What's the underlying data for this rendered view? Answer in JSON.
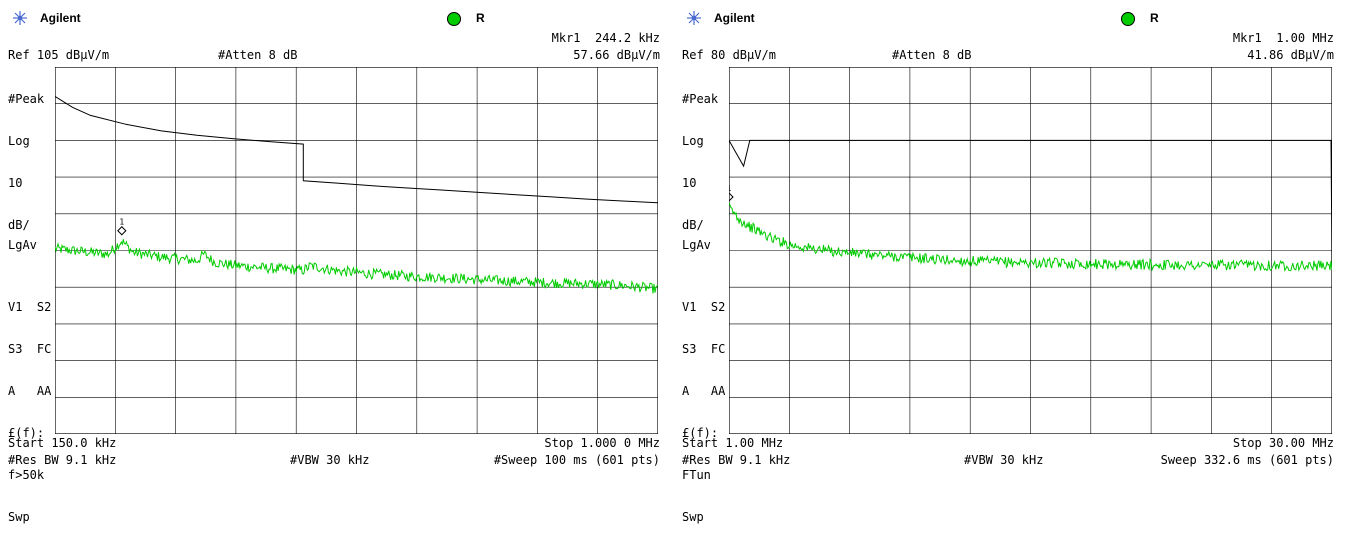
{
  "panels": [
    {
      "id": "left",
      "brand": "Agilent",
      "r_indicator": "R",
      "mkr_label": "Mkr1  244.2 kHz",
      "mkr_value": "57.66 dBμV/m",
      "ref": "Ref 105 dBμV/m",
      "atten": "#Atten 8 dB",
      "side_labels": [
        "#Peak",
        "Log",
        "10",
        "dB/"
      ],
      "lgav": "LgAv",
      "side_labels2": [
        "V1  S2",
        "S3  FC",
        "A   AA",
        "£(f):",
        "f>50k",
        "Swp"
      ],
      "start": "Start 150.0 kHz",
      "stop": "Stop 1.000 0 MHz",
      "res_bw": "#Res BW 9.1 kHz",
      "vbw": "#VBW 30 kHz",
      "sweep": "#Sweep 100 ms (601 pts)",
      "marker_num": "1",
      "colors": {
        "trace": "#00cc00",
        "limit": "#000000",
        "indicator": "#00cc00"
      }
    },
    {
      "id": "right",
      "brand": "Agilent",
      "r_indicator": "R",
      "mkr_label": "Mkr1  1.00 MHz",
      "mkr_value": "41.86 dBμV/m",
      "ref": "Ref 80 dBμV/m",
      "atten": "#Atten 8 dB",
      "side_labels": [
        "#Peak",
        "Log",
        "10",
        "dB/"
      ],
      "lgav": "LgAv",
      "side_labels2": [
        "V1  S2",
        "S3  FC",
        "A   AA",
        "£(f):",
        "FTun",
        "Swp"
      ],
      "start": "Start 1.00 MHz",
      "stop": "Stop 30.00 MHz",
      "res_bw": "#Res BW 9.1 kHz",
      "vbw": "#VBW 30 kHz",
      "sweep": "Sweep 332.6 ms (601 pts)",
      "marker_num": "1",
      "colors": {
        "trace": "#00cc00",
        "limit": "#000000",
        "indicator": "#00cc00"
      }
    }
  ],
  "chart_data": [
    {
      "type": "line",
      "title": "",
      "xlabel": "",
      "ylabel": "dBμV/m",
      "x_unit": "kHz",
      "xlim": [
        150.0,
        1000.0
      ],
      "ylim": [
        5,
        105
      ],
      "grid": true,
      "series": [
        {
          "role": "limit",
          "x": [
            150,
            175,
            200,
            250,
            300,
            350,
            400,
            450,
            500,
            500.01,
            550,
            600,
            650,
            700,
            750,
            800,
            850,
            900,
            950,
            1000
          ],
          "values": [
            97,
            94,
            91.8,
            89.4,
            87.6,
            86.4,
            85.5,
            84.7,
            84.0,
            74.0,
            73.3,
            72.6,
            72.0,
            71.4,
            70.8,
            70.2,
            69.6,
            69.0,
            68.5,
            68.0
          ]
        },
        {
          "role": "trace",
          "x": [
            150,
            175,
            200,
            225,
            244.2,
            260,
            300,
            350,
            360,
            375,
            400,
            450,
            500,
            510,
            550,
            600,
            650,
            700,
            750,
            800,
            850,
            900,
            950,
            1000
          ],
          "values": [
            55.5,
            55.0,
            54.5,
            54.0,
            57.66,
            54.5,
            53.2,
            52.2,
            54.0,
            51.8,
            51.0,
            50.2,
            49.6,
            50.8,
            49.4,
            48.6,
            48.0,
            47.6,
            47.0,
            46.6,
            46.2,
            45.9,
            45.5,
            44.5
          ]
        }
      ],
      "marker": {
        "x": 244.2,
        "y": 57.66
      }
    },
    {
      "type": "line",
      "title": "",
      "xlabel": "",
      "ylabel": "dBμV/m",
      "x_unit": "MHz",
      "xlim": [
        1.0,
        30.0
      ],
      "ylim": [
        -20,
        80
      ],
      "grid": true,
      "series": [
        {
          "role": "limit",
          "x": [
            1.0,
            1.3,
            1.7,
            2.0,
            29.9,
            29.95,
            30.0
          ],
          "values": [
            60,
            57,
            53,
            60,
            60,
            60,
            26
          ]
        },
        {
          "role": "trace",
          "x": [
            1.0,
            1.5,
            2.0,
            3.0,
            4.0,
            5.0,
            6.0,
            8.0,
            10.0,
            12.0,
            14.0,
            16.0,
            18.0,
            20.0,
            22.0,
            24.0,
            26.0,
            28.0,
            30.0
          ],
          "values": [
            41.86,
            38.5,
            36.5,
            33.5,
            31.5,
            30.5,
            29.8,
            28.8,
            28.0,
            27.2,
            26.9,
            26.6,
            26.4,
            26.2,
            26.1,
            26.0,
            26.0,
            25.9,
            25.8
          ]
        }
      ],
      "marker": {
        "x": 1.0,
        "y": 41.86
      }
    }
  ]
}
